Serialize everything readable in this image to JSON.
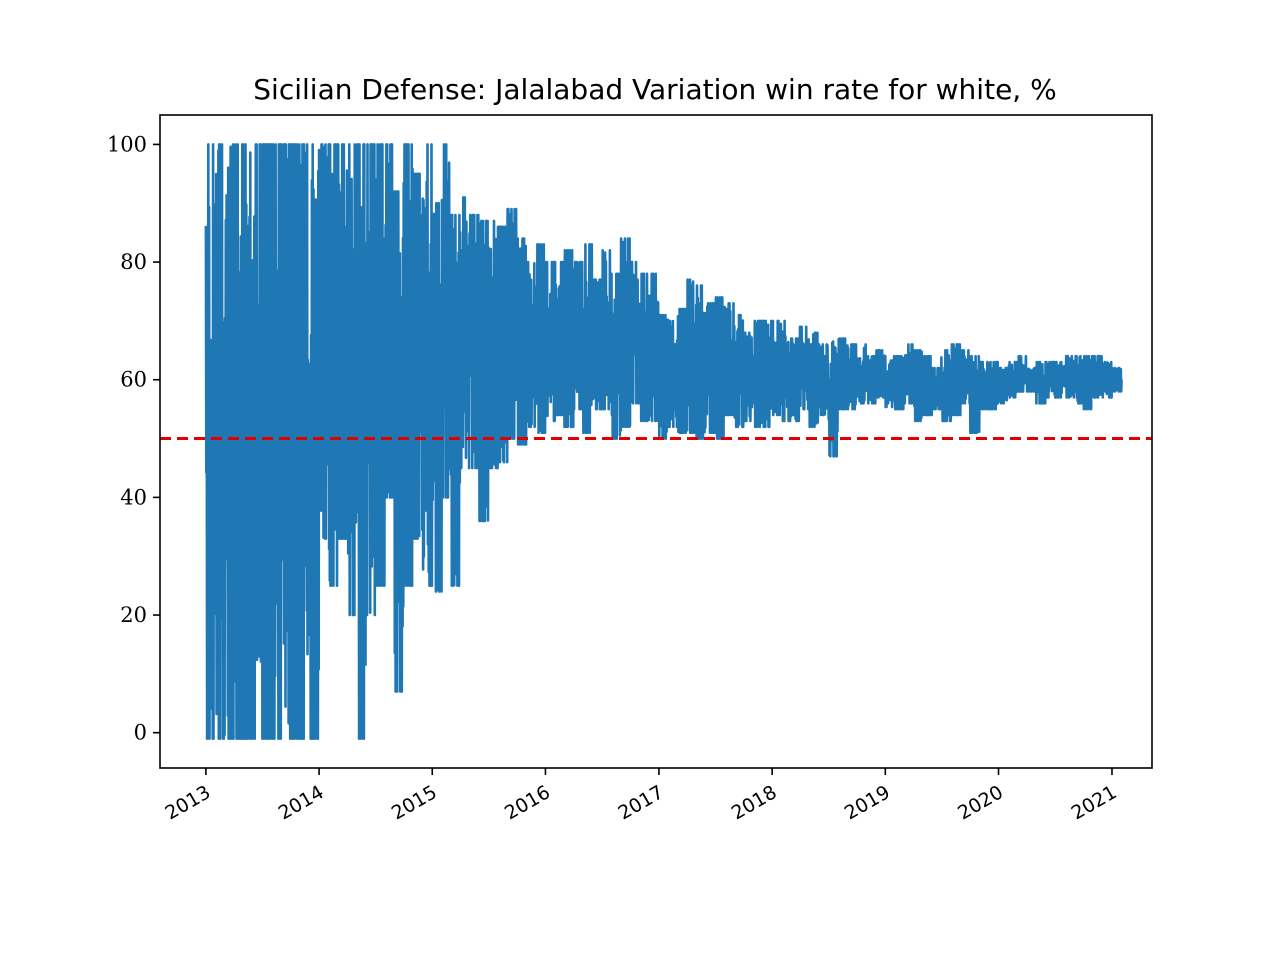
{
  "chart_data": {
    "type": "line",
    "title": "Sicilian Defense: Jalalabad Variation win rate for white, %",
    "xlabel": "",
    "ylabel": "",
    "x_range": [
      "2012-08-06",
      "2021-05-10"
    ],
    "ylim": [
      -6,
      105
    ],
    "x_tick_labels": [
      "2013",
      "2014",
      "2015",
      "2016",
      "2017",
      "2018",
      "2019",
      "2020",
      "2021"
    ],
    "y_tick_labels": [
      "0",
      "20",
      "40",
      "60",
      "80",
      "100"
    ],
    "y_ticks": [
      0,
      20,
      40,
      60,
      80,
      100
    ],
    "grid": false,
    "reference_line": {
      "y": 50,
      "color": "#e00000",
      "style": "dashed"
    },
    "line_color": "#1f77b4",
    "series": [
      {
        "x": [
          "2013-01-01",
          "2013-02-01",
          "2013-03-01",
          "2013-04-01",
          "2013-05-01",
          "2013-06-01",
          "2013-07-01",
          "2013-08-01",
          "2013-09-01",
          "2013-10-01",
          "2013-11-01",
          "2013-12-01",
          "2014-01-01",
          "2014-02-01",
          "2014-03-01",
          "2014-04-01",
          "2014-05-01",
          "2014-06-01",
          "2014-07-01",
          "2014-08-01",
          "2014-09-01",
          "2014-10-01",
          "2014-11-01",
          "2014-12-01",
          "2015-01-01",
          "2015-02-01",
          "2015-03-01",
          "2015-04-01",
          "2015-05-01",
          "2015-06-01",
          "2015-07-01",
          "2015-08-01",
          "2015-09-01",
          "2015-10-01",
          "2015-11-01",
          "2015-12-01",
          "2016-01-01",
          "2016-02-01",
          "2016-03-01",
          "2016-04-01",
          "2016-05-01",
          "2016-06-01",
          "2016-07-01",
          "2016-08-01",
          "2016-09-01",
          "2016-10-01",
          "2016-11-01",
          "2016-12-01",
          "2017-01-01",
          "2017-02-01",
          "2017-03-01",
          "2017-04-01",
          "2017-05-01",
          "2017-06-01",
          "2017-07-01",
          "2017-08-01",
          "2017-09-01",
          "2017-10-01",
          "2017-11-01",
          "2017-12-01",
          "2018-01-01",
          "2018-02-01",
          "2018-03-01",
          "2018-04-01",
          "2018-05-01",
          "2018-06-01",
          "2018-07-01",
          "2018-08-01",
          "2018-09-01",
          "2018-10-01",
          "2018-11-01",
          "2018-12-01",
          "2019-01-01",
          "2019-02-01",
          "2019-03-01",
          "2019-04-01",
          "2019-05-01",
          "2019-06-01",
          "2019-07-01",
          "2019-08-01",
          "2019-09-01",
          "2019-10-01",
          "2019-11-01",
          "2019-12-01",
          "2020-01-01",
          "2020-02-01",
          "2020-03-01",
          "2020-04-01",
          "2020-05-01",
          "2020-06-01",
          "2020-07-01",
          "2020-08-01",
          "2020-09-01",
          "2020-10-01",
          "2020-11-01",
          "2020-12-01",
          "2021-01-01",
          "2021-02-01"
        ],
        "high": [
          100,
          100,
          100,
          100,
          100,
          100,
          100,
          100,
          100,
          100,
          100,
          100,
          100,
          100,
          100,
          100,
          100,
          100,
          100,
          100,
          92,
          100,
          95,
          100,
          90,
          100,
          88,
          91,
          88,
          87,
          87,
          86,
          89,
          84,
          80,
          83,
          80,
          80,
          82,
          80,
          83,
          77,
          82,
          78,
          84,
          80,
          78,
          78,
          71,
          70,
          72,
          77,
          76,
          73,
          74,
          73,
          71,
          68,
          70,
          70,
          70,
          70,
          67,
          69,
          68,
          66,
          67,
          67,
          66,
          66,
          64,
          65,
          64,
          64,
          66,
          65,
          64,
          62,
          65,
          66,
          65,
          64,
          63,
          63,
          62,
          63,
          64,
          62,
          63,
          63,
          63,
          64,
          64,
          64,
          64,
          63,
          62,
          62
        ],
        "low": [
          -1,
          -1,
          -1,
          -1,
          -1,
          -1,
          -1,
          -1,
          -1,
          -1,
          -1,
          -1,
          33,
          25,
          33,
          20,
          -1,
          20,
          25,
          40,
          7,
          25,
          33,
          25,
          24,
          40,
          25,
          45,
          45,
          36,
          45,
          46,
          50,
          49,
          52,
          51,
          53,
          54,
          52,
          55,
          51,
          55,
          55,
          50,
          52,
          56,
          53,
          53,
          50,
          52,
          51,
          51,
          50,
          51,
          50,
          54,
          52,
          53,
          52,
          52,
          54,
          53,
          53,
          55,
          52,
          54,
          47,
          55,
          55,
          56,
          56,
          57,
          55,
          55,
          56,
          53,
          54,
          55,
          53,
          54,
          56,
          51,
          55,
          55,
          56,
          57,
          58,
          58,
          56,
          57,
          57,
          57,
          56,
          55,
          57,
          57,
          58,
          58
        ]
      }
    ]
  }
}
